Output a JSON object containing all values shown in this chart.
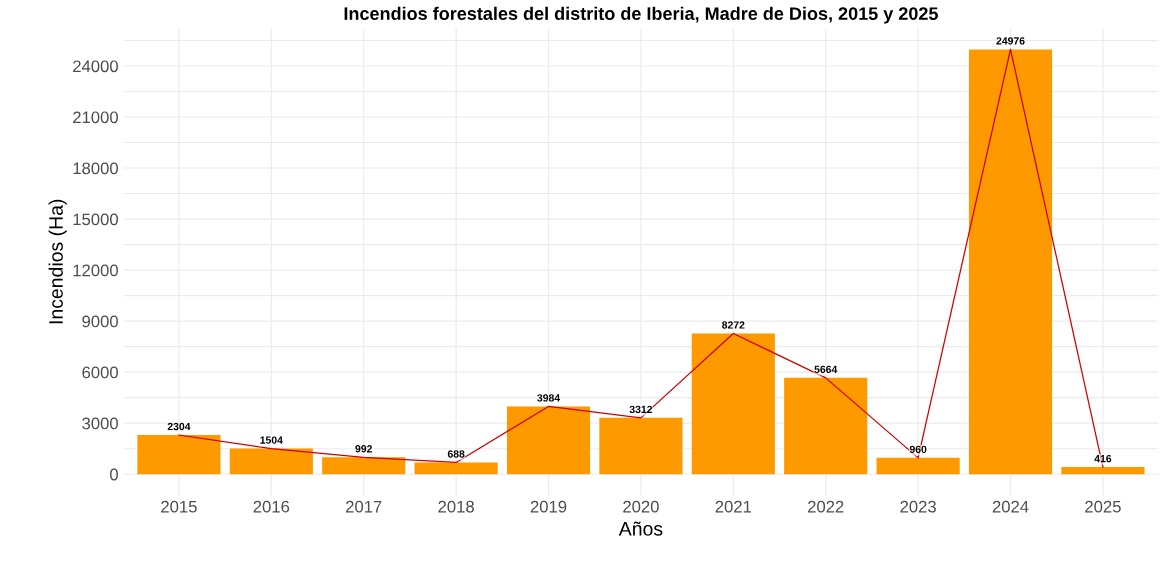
{
  "chart_data": {
    "type": "bar",
    "title": "Incendios forestales del distrito de Iberia, Madre de Dios, 2015 y 2025",
    "xlabel": "Años",
    "ylabel": "Incendios (Ha)",
    "categories": [
      "2015",
      "2016",
      "2017",
      "2018",
      "2019",
      "2020",
      "2021",
      "2022",
      "2023",
      "2024",
      "2025"
    ],
    "series": [
      {
        "color": "#ff9900",
        "values": [
          2304,
          1504,
          992,
          688,
          3984,
          3312,
          8272,
          5664,
          960,
          24976,
          416
        ],
        "value_labels": [
          "2304",
          "1504",
          "992",
          "688",
          "3984",
          "3312",
          "8272",
          "5664",
          "960",
          "24976",
          "416"
        ]
      },
      {
        "type": "line",
        "color": "#cc0000",
        "values": [
          2304,
          1504,
          992,
          688,
          3984,
          3312,
          8272,
          5664,
          960,
          24976,
          416
        ]
      }
    ],
    "ylim": [
      -1249,
      26225
    ],
    "yticks": [
      0,
      {
        "value": 1500,
        "label": null
      },
      3000,
      {
        "value": 4500,
        "label": null
      },
      6000,
      {
        "value": 7500,
        "label": null
      },
      9000,
      {
        "value": 10500,
        "label": null
      },
      12000,
      {
        "value": 13500,
        "label": null
      },
      15000,
      {
        "value": 16500,
        "label": null
      },
      18000,
      {
        "value": 19500,
        "label": null
      },
      21000,
      {
        "value": 22500,
        "label": null
      },
      24000,
      {
        "value": 25500,
        "label": null
      }
    ],
    "grid": true,
    "marker": "none",
    "line_style": "solid"
  }
}
